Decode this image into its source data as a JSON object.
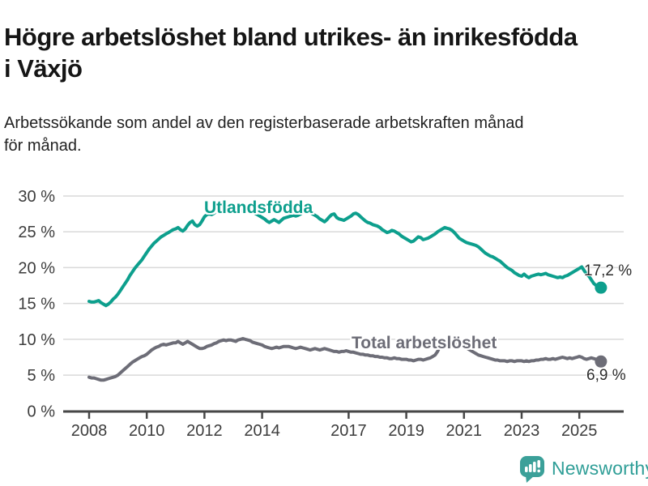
{
  "header": {
    "title": "Högre arbetslöshet bland utrikes- än inrikesfödda i Växjö",
    "subtitle": "Arbetssökande som andel av den registerbaserade arbetskraften månad för månad."
  },
  "chart_data": {
    "type": "line",
    "title": "Högre arbetslöshet bland utrikes- än inrikesfödda i Växjö",
    "xlabel": "",
    "ylabel": "",
    "ylim": [
      0,
      30
    ],
    "grid": true,
    "x_unit": "monthly",
    "x_start_year": 2008,
    "x_tick_labels": [
      "2008",
      "2010",
      "2012",
      "2014",
      "2017",
      "2019",
      "2021",
      "2023",
      "2025"
    ],
    "x_tick_years": [
      2008,
      2010,
      2012,
      2014,
      2017,
      2019,
      2021,
      2023,
      2025
    ],
    "y_ticks": [
      {
        "value": 0,
        "label": "0 %"
      },
      {
        "value": 5,
        "label": "5 %"
      },
      {
        "value": 10,
        "label": "10 %"
      },
      {
        "value": 15,
        "label": "15 %"
      },
      {
        "value": 20,
        "label": "20 %"
      },
      {
        "value": 25,
        "label": "25 %"
      },
      {
        "value": 30,
        "label": "30 %"
      }
    ],
    "series": [
      {
        "name": "Utlandsfödda",
        "color": "#0d9f8d",
        "end_label": "17,2 %",
        "end_value": 17.2,
        "values": [
          15.3,
          15.2,
          15.2,
          15.3,
          15.4,
          15.1,
          14.9,
          14.7,
          14.9,
          15.2,
          15.6,
          15.9,
          16.3,
          16.8,
          17.3,
          17.8,
          18.3,
          18.9,
          19.4,
          19.9,
          20.3,
          20.7,
          21.1,
          21.6,
          22.1,
          22.6,
          23.0,
          23.4,
          23.7,
          24.0,
          24.3,
          24.5,
          24.7,
          24.9,
          25.1,
          25.3,
          25.4,
          25.6,
          25.3,
          25.1,
          25.4,
          25.9,
          26.3,
          26.5,
          26.0,
          25.8,
          26.0,
          26.5,
          27.1,
          27.4,
          27.5,
          27.4,
          27.6,
          27.9,
          28.1,
          28.3,
          28.5,
          28.7,
          28.8,
          28.9,
          28.7,
          28.4,
          28.2,
          28.0,
          27.9,
          28.1,
          28.2,
          28.0,
          27.8,
          27.6,
          27.4,
          27.2,
          27.0,
          26.8,
          26.5,
          26.3,
          26.5,
          26.7,
          26.5,
          26.3,
          26.6,
          26.9,
          27.0,
          27.1,
          27.2,
          27.3,
          27.2,
          27.3,
          27.5,
          27.7,
          27.8,
          27.9,
          27.7,
          27.5,
          27.3,
          27.1,
          26.8,
          26.6,
          26.4,
          26.7,
          27.1,
          27.4,
          27.5,
          27.0,
          26.8,
          26.7,
          26.6,
          26.8,
          27.0,
          27.2,
          27.5,
          27.6,
          27.4,
          27.1,
          26.8,
          26.5,
          26.3,
          26.2,
          26.0,
          25.9,
          25.8,
          25.6,
          25.3,
          25.1,
          24.9,
          25.0,
          25.2,
          25.1,
          24.9,
          24.7,
          24.4,
          24.2,
          24.0,
          23.8,
          23.6,
          23.7,
          24.0,
          24.3,
          24.2,
          23.9,
          24.0,
          24.1,
          24.3,
          24.5,
          24.7,
          25.0,
          25.2,
          25.4,
          25.6,
          25.5,
          25.4,
          25.2,
          24.9,
          24.5,
          24.1,
          23.9,
          23.7,
          23.5,
          23.4,
          23.3,
          23.2,
          23.1,
          22.9,
          22.6,
          22.3,
          22.0,
          21.8,
          21.6,
          21.5,
          21.3,
          21.1,
          20.9,
          20.6,
          20.3,
          20.0,
          19.8,
          19.6,
          19.3,
          19.1,
          18.9,
          18.8,
          19.1,
          18.8,
          18.6,
          18.8,
          18.9,
          19.0,
          19.1,
          19.0,
          19.1,
          19.2,
          19.0,
          18.9,
          18.8,
          18.7,
          18.6,
          18.7,
          18.6,
          18.8,
          18.9,
          19.1,
          19.3,
          19.5,
          19.7,
          19.9,
          20.1,
          19.6,
          19.1,
          18.8,
          18.3,
          17.8,
          17.5,
          17.3,
          17.2
        ]
      },
      {
        "name": "Total arbetslöshet",
        "color": "#6d6d77",
        "end_label": "6,9 %",
        "end_value": 6.9,
        "values": [
          4.7,
          4.6,
          4.6,
          4.5,
          4.4,
          4.3,
          4.3,
          4.4,
          4.5,
          4.6,
          4.7,
          4.8,
          5.0,
          5.3,
          5.6,
          5.9,
          6.2,
          6.5,
          6.8,
          7.0,
          7.2,
          7.4,
          7.6,
          7.7,
          7.9,
          8.2,
          8.5,
          8.7,
          8.9,
          9.0,
          9.2,
          9.3,
          9.2,
          9.3,
          9.4,
          9.5,
          9.5,
          9.7,
          9.5,
          9.3,
          9.5,
          9.7,
          9.5,
          9.3,
          9.1,
          8.9,
          8.7,
          8.7,
          8.8,
          9.0,
          9.1,
          9.2,
          9.4,
          9.5,
          9.7,
          9.8,
          9.9,
          9.8,
          9.9,
          9.9,
          9.8,
          9.7,
          9.9,
          10.0,
          10.1,
          10.0,
          9.9,
          9.8,
          9.6,
          9.5,
          9.4,
          9.3,
          9.2,
          9.0,
          8.9,
          8.8,
          8.7,
          8.8,
          8.9,
          8.8,
          8.9,
          9.0,
          9.0,
          9.0,
          8.9,
          8.8,
          8.7,
          8.8,
          8.9,
          8.8,
          8.7,
          8.6,
          8.5,
          8.6,
          8.7,
          8.6,
          8.5,
          8.6,
          8.7,
          8.6,
          8.5,
          8.4,
          8.3,
          8.3,
          8.2,
          8.3,
          8.3,
          8.4,
          8.3,
          8.2,
          8.2,
          8.1,
          8.0,
          7.9,
          7.9,
          7.8,
          7.8,
          7.7,
          7.7,
          7.6,
          7.6,
          7.5,
          7.5,
          7.4,
          7.4,
          7.3,
          7.3,
          7.4,
          7.3,
          7.3,
          7.2,
          7.2,
          7.2,
          7.1,
          7.1,
          7.0,
          7.1,
          7.2,
          7.2,
          7.1,
          7.2,
          7.3,
          7.4,
          7.6,
          7.8,
          8.3,
          9.0,
          9.6,
          9.9,
          10.0,
          9.9,
          9.8,
          9.6,
          9.4,
          9.2,
          9.1,
          9.0,
          8.8,
          8.6,
          8.4,
          8.2,
          8.0,
          7.8,
          7.7,
          7.6,
          7.5,
          7.4,
          7.3,
          7.2,
          7.1,
          7.1,
          7.0,
          7.0,
          7.0,
          6.9,
          7.0,
          7.0,
          6.9,
          7.0,
          7.0,
          7.0,
          6.9,
          7.0,
          6.9,
          7.0,
          7.0,
          7.1,
          7.1,
          7.2,
          7.2,
          7.3,
          7.2,
          7.2,
          7.3,
          7.2,
          7.3,
          7.4,
          7.5,
          7.4,
          7.3,
          7.4,
          7.3,
          7.4,
          7.5,
          7.6,
          7.5,
          7.3,
          7.2,
          7.3,
          7.4,
          7.3,
          7.2,
          7.0,
          6.9
        ]
      }
    ],
    "legend_position": "inline-labels"
  },
  "footer": {
    "brand": "Newsworthy",
    "brand_color": "#2f9e97",
    "logo_icon": "bar-chart-speech-bubble-icon"
  },
  "colors": {
    "background": "#ffffff",
    "gridline": "#d9d9d9",
    "axis": "#474747",
    "tick_label": "#3c3c3c",
    "series_foreign_born": "#0d9f8d",
    "series_total": "#6d6d77"
  }
}
